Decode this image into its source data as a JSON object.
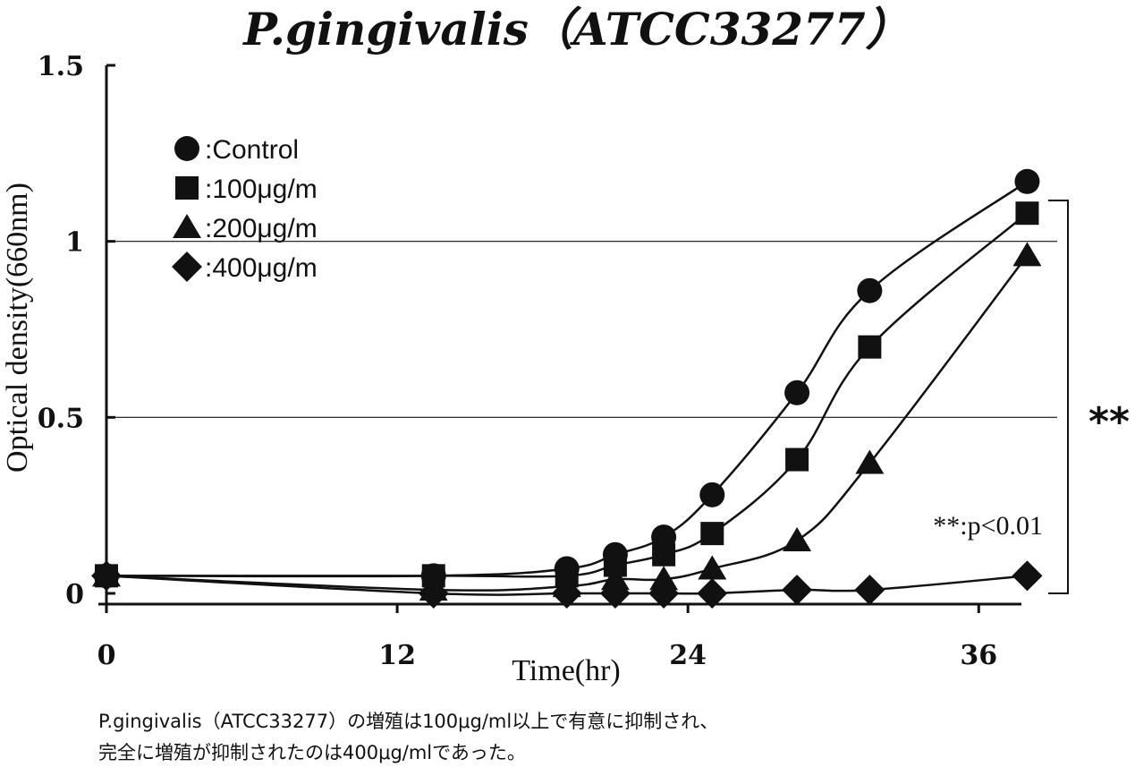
{
  "chart_data": {
    "type": "line",
    "title": "P.gingivalis（ATCC33277）",
    "xlabel": "Time(hr)",
    "ylabel": "Optical density(660nm)",
    "xlim": [
      0,
      38.5
    ],
    "ylim": [
      0,
      1.5
    ],
    "x_ticks": [
      0,
      12,
      24,
      36
    ],
    "x_tick_labels": [
      "0",
      "12",
      "24",
      "36"
    ],
    "y_ticks": [
      0,
      0.5,
      1,
      1.5
    ],
    "y_tick_labels": [
      "0",
      "0.5",
      "1",
      "1.5"
    ],
    "gridlines_y": [
      0.5,
      1
    ],
    "legend_position": "top-left",
    "series": [
      {
        "name": ":Control",
        "marker": "circle",
        "x": [
          0,
          13.5,
          19,
          21,
          23,
          25,
          28.5,
          31.5,
          38
        ],
        "y": [
          0.05,
          0.05,
          0.07,
          0.11,
          0.16,
          0.28,
          0.57,
          0.86,
          1.17
        ]
      },
      {
        "name": ":100μg/m",
        "marker": "square",
        "x": [
          0,
          13.5,
          19,
          21,
          23,
          25,
          28.5,
          31.5,
          38
        ],
        "y": [
          0.05,
          0.05,
          0.05,
          0.08,
          0.11,
          0.17,
          0.38,
          0.7,
          1.08
        ]
      },
      {
        "name": ":200μg/m",
        "marker": "triangle",
        "x": [
          0,
          13.5,
          19,
          21,
          23,
          25,
          28.5,
          31.5,
          38
        ],
        "y": [
          0.05,
          0.01,
          0.02,
          0.04,
          0.04,
          0.07,
          0.15,
          0.37,
          0.96
        ]
      },
      {
        "name": ":400μg/m",
        "marker": "diamond",
        "x": [
          0,
          13.5,
          19,
          21,
          23,
          25,
          28.5,
          31.5,
          38
        ],
        "y": [
          0.05,
          0.0,
          0.0,
          0.0,
          0.0,
          0.0,
          0.01,
          0.01,
          0.05
        ]
      }
    ],
    "annotations": {
      "significance_mark": "**",
      "significance_note": "**:p<0.01"
    }
  },
  "caption": {
    "line1": "P.gingivalis（ATCC33277）の増殖は100μg/ml以上で有意に抑制され、",
    "line2": "完全に増殖が抑制されたのは400μg/mlであった。"
  }
}
